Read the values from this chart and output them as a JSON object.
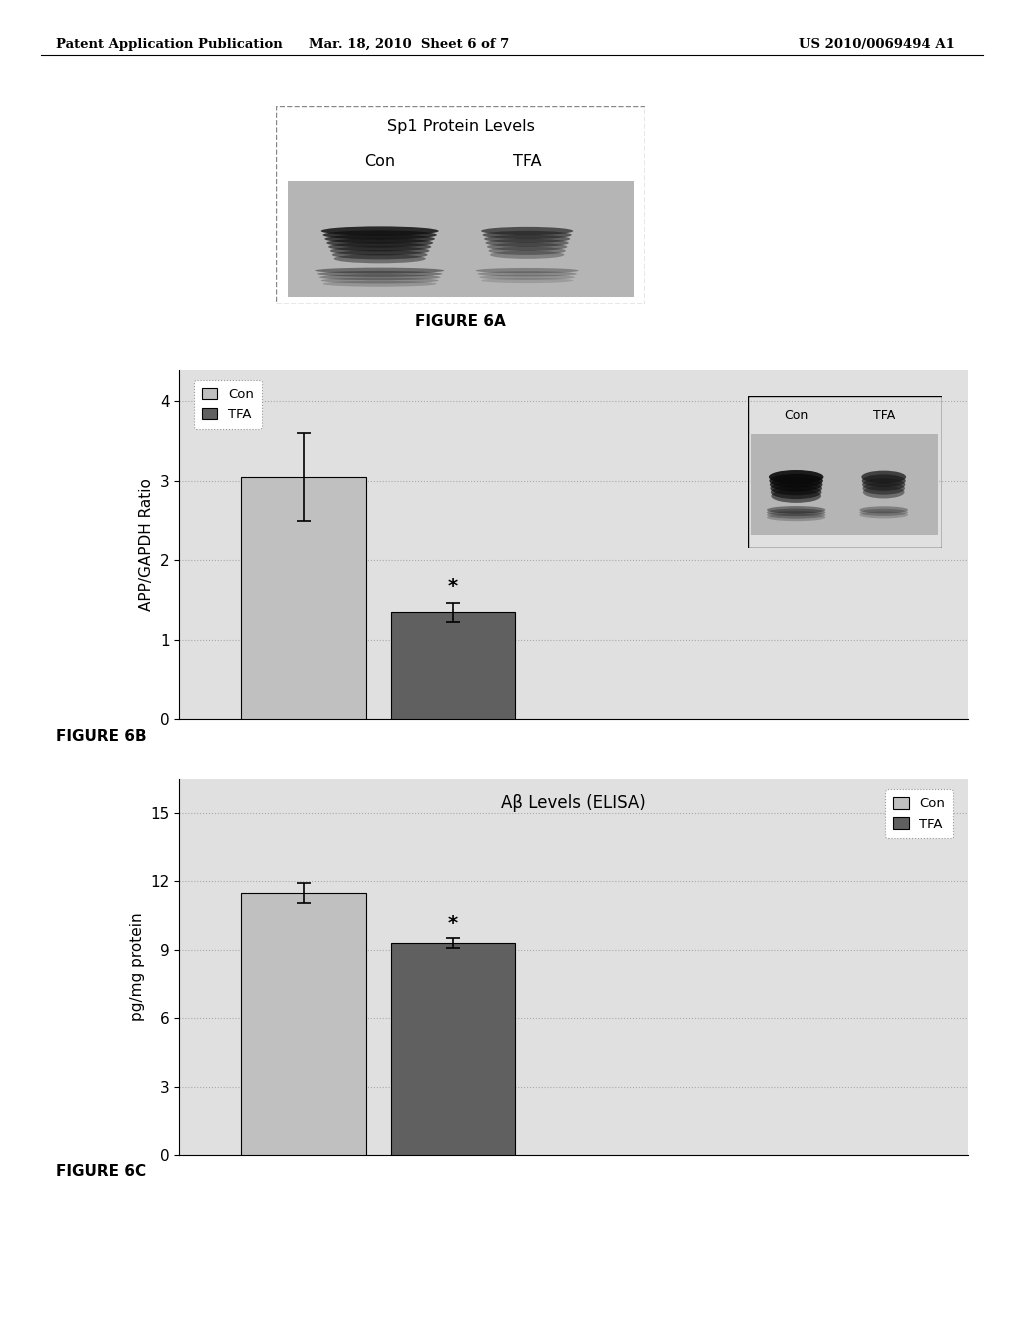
{
  "header_left": "Patent Application Publication",
  "header_mid": "Mar. 18, 2010  Sheet 6 of 7",
  "header_right": "US 2010/0069494 A1",
  "fig6a_title": "Sp1 Protein Levels",
  "fig6a_label": "FIGURE 6A",
  "fig6a_col1": "Con",
  "fig6a_col2": "TFA",
  "fig6b_label": "FIGURE 6B",
  "fig6b_ylabel": "APP/GAPDH Ratio",
  "fig6b_con_val": 3.05,
  "fig6b_tfa_val": 1.35,
  "fig6b_con_err": 0.55,
  "fig6b_tfa_err": 0.12,
  "fig6b_ylim": [
    0,
    4.4
  ],
  "fig6b_yticks": [
    0,
    1,
    2,
    3,
    4
  ],
  "fig6b_legend_con": "Con",
  "fig6b_legend_tfa": "TFA",
  "fig6b_inset_con": "Con",
  "fig6b_inset_tfa": "TFA",
  "fig6c_title": "Aβ Levels (ELISA)",
  "fig6c_label": "FIGURE 6C",
  "fig6c_ylabel": "pg/mg protein",
  "fig6c_con_val": 11.5,
  "fig6c_tfa_val": 9.3,
  "fig6c_con_err": 0.45,
  "fig6c_tfa_err": 0.22,
  "fig6c_ylim": [
    0,
    16.5
  ],
  "fig6c_yticks": [
    0,
    3,
    6,
    9,
    12,
    15
  ],
  "fig6c_legend_con": "Con",
  "fig6c_legend_tfa": "TFA",
  "con_color": "#c0c0c0",
  "tfa_color": "#606060",
  "bg_color": "#e0e0e0",
  "star_label": "*",
  "page_bg": "#ffffff"
}
